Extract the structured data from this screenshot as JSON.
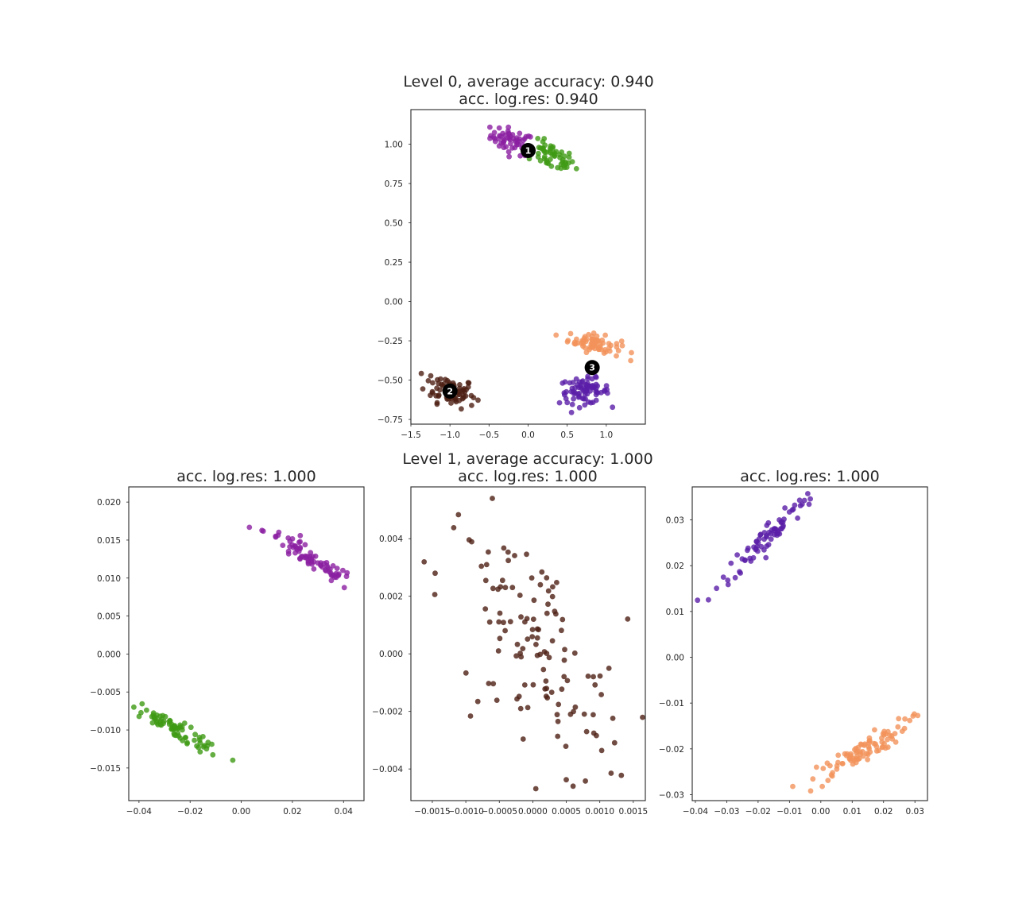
{
  "chart_data": [
    {
      "type": "scatter",
      "title": "Level 0, average accuracy: 0.940",
      "subtitle": "acc. log.res: 0.940",
      "xlim": [
        -1.5,
        1.5
      ],
      "ylim": [
        -0.78,
        1.22
      ],
      "xticks": [
        -1.5,
        -1.0,
        -0.5,
        0.0,
        0.5,
        1.0
      ],
      "xtick_labels": [
        "−1.5",
        "−1.0",
        "−0.5",
        "0.0",
        "0.5",
        "1.0"
      ],
      "yticks": [
        -0.75,
        -0.5,
        -0.25,
        0.0,
        0.25,
        0.5,
        0.75,
        1.0
      ],
      "ytick_labels": [
        "−0.75",
        "−0.50",
        "−0.25",
        "0.00",
        "0.25",
        "0.50",
        "0.75",
        "1.00"
      ],
      "grid": false,
      "clusters": [
        {
          "color": "#8b1fa1",
          "center": [
            -0.2,
            1.02
          ],
          "spread": [
            0.14,
            0.04
          ],
          "slope": -0.2,
          "n": 55
        },
        {
          "color": "#3f9a14",
          "center": [
            0.3,
            0.92
          ],
          "spread": [
            0.15,
            0.04
          ],
          "slope": -0.25,
          "n": 55
        },
        {
          "color": "#4e1f14",
          "center": [
            -1.0,
            -0.56
          ],
          "spread": [
            0.16,
            0.05
          ],
          "slope": -0.2,
          "n": 80
        },
        {
          "color": "#f2925a",
          "center": [
            0.85,
            -0.27
          ],
          "spread": [
            0.17,
            0.03
          ],
          "slope": -0.15,
          "n": 70
        },
        {
          "color": "#5a1ea8",
          "center": [
            0.72,
            -0.57
          ],
          "spread": [
            0.16,
            0.04
          ],
          "slope": 0.0,
          "n": 80
        }
      ],
      "centroids": [
        {
          "label": "1",
          "x": 0.0,
          "y": 0.96
        },
        {
          "label": "2",
          "x": -1.0,
          "y": -0.57
        },
        {
          "label": "3",
          "x": 0.82,
          "y": -0.42
        }
      ]
    },
    {
      "type": "scatter",
      "title": "acc. log.res: 1.000",
      "xlim": [
        -0.044,
        0.048
      ],
      "ylim": [
        -0.0193,
        0.022
      ],
      "xticks": [
        -0.04,
        -0.02,
        0.0,
        0.02,
        0.04
      ],
      "xtick_labels": [
        "−0.04",
        "−0.02",
        "0.00",
        "0.02",
        "0.04"
      ],
      "yticks": [
        -0.015,
        -0.01,
        -0.005,
        0.0,
        0.005,
        0.01,
        0.015,
        0.02
      ],
      "ytick_labels": [
        "−0.015",
        "−0.010",
        "−0.005",
        "0.000",
        "0.005",
        "0.010",
        "0.015",
        "0.020"
      ],
      "grid": false,
      "clusters": [
        {
          "color": "#8b1fa1",
          "center": [
            0.027,
            0.0125
          ],
          "spread": [
            0.009,
            0.0007
          ],
          "slope": -0.45,
          "n": 80
        },
        {
          "color": "#3f9a14",
          "center": [
            -0.025,
            -0.01
          ],
          "spread": [
            0.009,
            0.0006
          ],
          "slope": -0.45,
          "n": 80
        }
      ]
    },
    {
      "type": "scatter",
      "title": "Level 1, average accuracy: 1.000",
      "subtitle": "acc. log.res: 1.000",
      "xlim": [
        -0.00182,
        0.00168
      ],
      "ylim": [
        -0.0051,
        0.0058
      ],
      "xticks": [
        -0.0015,
        -0.001,
        -0.0005,
        0.0,
        0.0005,
        0.001,
        0.0015
      ],
      "xtick_labels": [
        "−0.0015",
        "−0.0010",
        "−0.0005",
        "0.0000",
        "0.0005",
        "0.0010",
        "0.0015"
      ],
      "yticks": [
        -0.004,
        -0.002,
        0.0,
        0.002,
        0.004
      ],
      "ytick_labels": [
        "−0.004",
        "−0.002",
        "0.000",
        "0.002",
        "0.004"
      ],
      "grid": false,
      "clusters": [
        {
          "color": "#4e1f14",
          "center": [
            0.0,
            0.0
          ],
          "spread": [
            0.0007,
            0.0019
          ],
          "slope": -0.6,
          "n": 130
        }
      ]
    },
    {
      "type": "scatter",
      "title": "acc. log.res: 1.000",
      "xlim": [
        -0.041,
        0.034
      ],
      "ylim": [
        -0.0313,
        0.0372
      ],
      "xticks": [
        -0.04,
        -0.03,
        -0.02,
        -0.01,
        0.0,
        0.01,
        0.02,
        0.03
      ],
      "xtick_labels": [
        "−0.04",
        "−0.03",
        "−0.02",
        "−0.01",
        "0.00",
        "0.01",
        "0.02",
        "0.03"
      ],
      "yticks": [
        -0.03,
        -0.02,
        -0.01,
        0.0,
        0.01,
        0.02,
        0.03
      ],
      "ytick_labels": [
        "−0.03",
        "−0.02",
        "−0.01",
        "0.00",
        "0.01",
        "0.02",
        "0.03"
      ],
      "grid": false,
      "clusters": [
        {
          "color": "#5a1ea8",
          "center": [
            -0.016,
            0.027
          ],
          "spread": [
            0.008,
            0.0015
          ],
          "slope": 0.7,
          "n": 80
        },
        {
          "color": "#f2925a",
          "center": [
            0.012,
            -0.021
          ],
          "spread": [
            0.008,
            0.0013
          ],
          "slope": 0.45,
          "n": 90
        }
      ]
    }
  ]
}
